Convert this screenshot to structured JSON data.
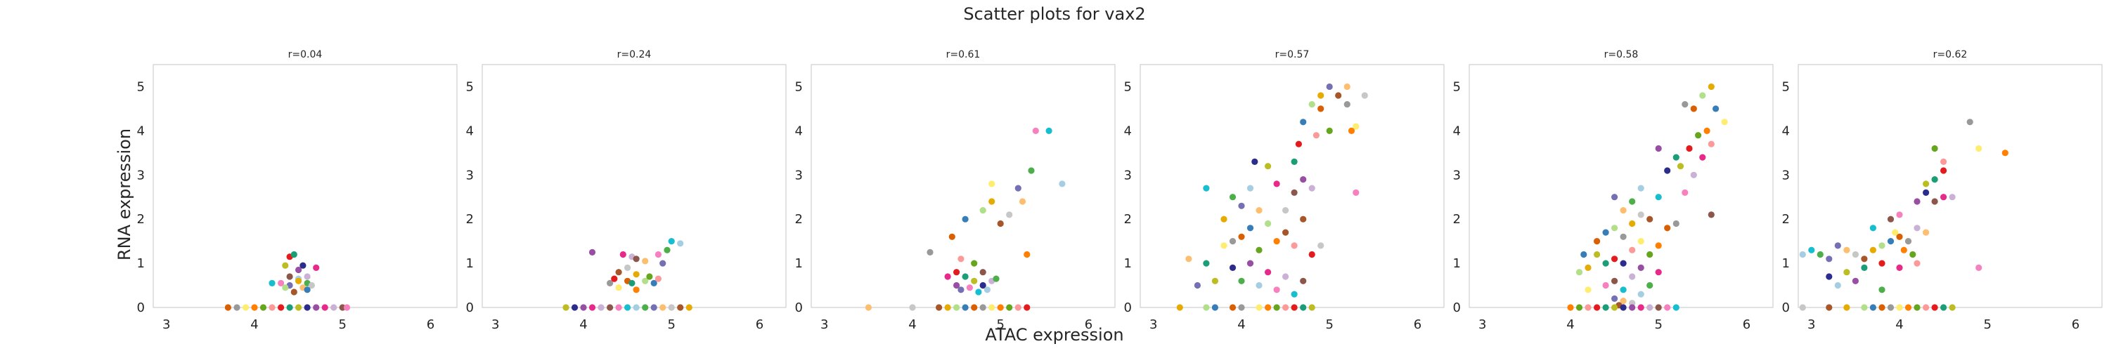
{
  "figure": {
    "title": "Scatter plots for vax2",
    "xlabel": "ATAC expression",
    "ylabel": "RNA expression"
  },
  "colors": [
    "#e41a1c",
    "#377eb8",
    "#4daf4a",
    "#984ea3",
    "#ff7f00",
    "#a65628",
    "#f781bf",
    "#1b9e77",
    "#d95f02",
    "#7570b3",
    "#e7298a",
    "#66a61e",
    "#e6ab02",
    "#17becf",
    "#bcbd22",
    "#999999",
    "#fdbf6f",
    "#cab2d6",
    "#fb9a99",
    "#b2df8a",
    "#a6cee3",
    "#2c2c8c",
    "#ffed6f",
    "#c7c7c7",
    "#8c564b"
  ],
  "chart_data": [
    {
      "type": "scatter",
      "title": "r=0.04",
      "xlim": [
        2.85,
        6.3
      ],
      "ylim": [
        0,
        5.5
      ],
      "xticks": [
        3,
        4,
        5,
        6
      ],
      "yticks": [
        0,
        1,
        2,
        3,
        4,
        5
      ],
      "grid": false,
      "points": [
        [
          4.4,
          1.15
        ],
        [
          4.45,
          1.2
        ],
        [
          4.35,
          0.95
        ],
        [
          4.55,
          0.95
        ],
        [
          4.5,
          0.85
        ],
        [
          4.7,
          0.9
        ],
        [
          4.6,
          0.7
        ],
        [
          4.4,
          0.7
        ],
        [
          4.3,
          0.55
        ],
        [
          4.2,
          0.55
        ],
        [
          4.5,
          0.65
        ],
        [
          4.6,
          0.55
        ],
        [
          4.4,
          0.5
        ],
        [
          4.55,
          0.45
        ],
        [
          4.65,
          0.5
        ],
        [
          4.45,
          0.35
        ],
        [
          4.5,
          0.6
        ],
        [
          4.35,
          0.45
        ],
        [
          4.6,
          0.4
        ],
        [
          3.7,
          0
        ],
        [
          3.8,
          0
        ],
        [
          3.9,
          0
        ],
        [
          4.0,
          0
        ],
        [
          4.1,
          0
        ],
        [
          4.2,
          0
        ],
        [
          4.3,
          0
        ],
        [
          4.4,
          0
        ],
        [
          4.5,
          0
        ],
        [
          4.6,
          0
        ],
        [
          4.7,
          0
        ],
        [
          4.8,
          0
        ],
        [
          4.9,
          0
        ],
        [
          5.0,
          0
        ],
        [
          5.05,
          0
        ]
      ]
    },
    {
      "type": "scatter",
      "title": "r=0.24",
      "xlim": [
        2.85,
        6.3
      ],
      "ylim": [
        0,
        5.5
      ],
      "xticks": [
        3,
        4,
        5,
        6
      ],
      "yticks": [
        0,
        1,
        2,
        3,
        4,
        5
      ],
      "grid": false,
      "points": [
        [
          4.1,
          1.25
        ],
        [
          4.45,
          1.2
        ],
        [
          4.55,
          1.15
        ],
        [
          4.6,
          1.1
        ],
        [
          4.85,
          1.2
        ],
        [
          5.0,
          1.5
        ],
        [
          5.1,
          1.45
        ],
        [
          4.95,
          1.3
        ],
        [
          4.9,
          1.0
        ],
        [
          4.7,
          1.05
        ],
        [
          4.5,
          0.9
        ],
        [
          4.4,
          0.8
        ],
        [
          4.6,
          0.75
        ],
        [
          4.7,
          0.6
        ],
        [
          4.8,
          0.55
        ],
        [
          4.5,
          0.6
        ],
        [
          4.3,
          0.55
        ],
        [
          4.4,
          0.45
        ],
        [
          4.6,
          0.4
        ],
        [
          4.75,
          0.7
        ],
        [
          4.85,
          0.65
        ],
        [
          4.35,
          0.65
        ],
        [
          4.55,
          0.55
        ],
        [
          3.8,
          0
        ],
        [
          3.9,
          0
        ],
        [
          4.0,
          0
        ],
        [
          4.1,
          0
        ],
        [
          4.2,
          0
        ],
        [
          4.3,
          0
        ],
        [
          4.4,
          0
        ],
        [
          4.5,
          0
        ],
        [
          4.6,
          0
        ],
        [
          4.7,
          0
        ],
        [
          4.8,
          0
        ],
        [
          4.9,
          0
        ],
        [
          5.0,
          0
        ],
        [
          5.1,
          0
        ],
        [
          5.2,
          0
        ]
      ]
    },
    {
      "type": "scatter",
      "title": "r=0.61",
      "xlim": [
        2.85,
        6.3
      ],
      "ylim": [
        0,
        5.5
      ],
      "xticks": [
        3,
        4,
        5,
        6
      ],
      "yticks": [
        0,
        1,
        2,
        3,
        4,
        5
      ],
      "grid": false,
      "points": [
        [
          5.4,
          4.0
        ],
        [
          5.55,
          4.0
        ],
        [
          5.7,
          2.8
        ],
        [
          5.35,
          3.1
        ],
        [
          5.2,
          2.7
        ],
        [
          5.25,
          2.4
        ],
        [
          5.1,
          2.1
        ],
        [
          5.0,
          1.9
        ],
        [
          4.9,
          2.4
        ],
        [
          4.8,
          2.2
        ],
        [
          4.6,
          2.0
        ],
        [
          4.45,
          1.6
        ],
        [
          4.2,
          1.25
        ],
        [
          4.9,
          2.8
        ],
        [
          5.3,
          1.2
        ],
        [
          4.7,
          1.0
        ],
        [
          4.55,
          1.1
        ],
        [
          4.5,
          0.8
        ],
        [
          4.6,
          0.7
        ],
        [
          4.7,
          0.6
        ],
        [
          4.8,
          0.5
        ],
        [
          4.5,
          0.5
        ],
        [
          4.4,
          0.7
        ],
        [
          4.9,
          0.6
        ],
        [
          4.8,
          0.8
        ],
        [
          4.65,
          0.45
        ],
        [
          4.75,
          0.35
        ],
        [
          4.85,
          0.4
        ],
        [
          4.95,
          0.65
        ],
        [
          4.55,
          0.4
        ],
        [
          3.5,
          0
        ],
        [
          4.0,
          0
        ],
        [
          4.3,
          0
        ],
        [
          4.4,
          0
        ],
        [
          4.5,
          0
        ],
        [
          4.6,
          0
        ],
        [
          4.7,
          0
        ],
        [
          4.8,
          0
        ],
        [
          4.9,
          0
        ],
        [
          5.0,
          0
        ],
        [
          5.1,
          0
        ],
        [
          5.2,
          0
        ],
        [
          5.3,
          0
        ]
      ]
    },
    {
      "type": "scatter",
      "title": "r=0.57",
      "xlim": [
        2.85,
        6.3
      ],
      "ylim": [
        0,
        5.5
      ],
      "xticks": [
        3,
        4,
        5,
        6
      ],
      "yticks": [
        0,
        1,
        2,
        3,
        4,
        5
      ],
      "grid": false,
      "points": [
        [
          5.0,
          5.0
        ],
        [
          5.2,
          5.0
        ],
        [
          5.4,
          4.8
        ],
        [
          5.1,
          4.8
        ],
        [
          4.9,
          4.8
        ],
        [
          4.8,
          4.6
        ],
        [
          4.7,
          4.2
        ],
        [
          4.9,
          4.5
        ],
        [
          5.2,
          4.6
        ],
        [
          5.3,
          4.1
        ],
        [
          5.25,
          4.0
        ],
        [
          5.0,
          4.0
        ],
        [
          4.85,
          3.9
        ],
        [
          4.65,
          3.7
        ],
        [
          4.6,
          3.3
        ],
        [
          4.3,
          3.2
        ],
        [
          4.15,
          3.3
        ],
        [
          4.7,
          2.9
        ],
        [
          4.4,
          2.8
        ],
        [
          4.8,
          2.7
        ],
        [
          4.6,
          2.6
        ],
        [
          5.3,
          2.6
        ],
        [
          3.6,
          2.7
        ],
        [
          4.1,
          2.7
        ],
        [
          3.9,
          2.5
        ],
        [
          4.0,
          2.3
        ],
        [
          4.2,
          2.2
        ],
        [
          4.5,
          2.2
        ],
        [
          4.7,
          2.0
        ],
        [
          3.8,
          2.0
        ],
        [
          4.3,
          1.9
        ],
        [
          4.1,
          1.8
        ],
        [
          4.0,
          1.6
        ],
        [
          3.9,
          1.5
        ],
        [
          3.8,
          1.4
        ],
        [
          4.4,
          1.5
        ],
        [
          4.2,
          1.3
        ],
        [
          4.6,
          1.4
        ],
        [
          4.8,
          1.2
        ],
        [
          3.6,
          1.0
        ],
        [
          3.7,
          0.6
        ],
        [
          3.9,
          0.9
        ],
        [
          4.1,
          1.0
        ],
        [
          4.3,
          0.8
        ],
        [
          4.5,
          0.7
        ],
        [
          4.7,
          0.6
        ],
        [
          4.4,
          0.4
        ],
        [
          4.6,
          0.3
        ],
        [
          4.2,
          0.5
        ],
        [
          4.0,
          0.6
        ],
        [
          3.5,
          0.5
        ],
        [
          3.4,
          1.1
        ],
        [
          4.9,
          1.4
        ],
        [
          4.5,
          1.7
        ],
        [
          3.3,
          0
        ],
        [
          3.6,
          0
        ],
        [
          3.7,
          0
        ],
        [
          3.9,
          0
        ],
        [
          4.0,
          0
        ],
        [
          4.2,
          0
        ],
        [
          4.3,
          0
        ],
        [
          4.4,
          0
        ],
        [
          4.5,
          0
        ],
        [
          4.6,
          0
        ],
        [
          4.7,
          0
        ],
        [
          4.8,
          0
        ]
      ]
    },
    {
      "type": "scatter",
      "title": "r=0.58",
      "xlim": [
        2.85,
        6.3
      ],
      "ylim": [
        0,
        5.5
      ],
      "xticks": [
        3,
        4,
        5,
        6
      ],
      "yticks": [
        0,
        1,
        2,
        3,
        4,
        5
      ],
      "grid": false,
      "points": [
        [
          5.6,
          5.0
        ],
        [
          5.5,
          4.8
        ],
        [
          5.65,
          4.5
        ],
        [
          5.4,
          4.5
        ],
        [
          5.3,
          4.6
        ],
        [
          5.75,
          4.2
        ],
        [
          5.55,
          4.0
        ],
        [
          5.45,
          3.9
        ],
        [
          5.6,
          3.7
        ],
        [
          5.35,
          3.6
        ],
        [
          5.2,
          3.4
        ],
        [
          5.25,
          3.2
        ],
        [
          5.1,
          3.1
        ],
        [
          5.0,
          3.6
        ],
        [
          5.5,
          3.4
        ],
        [
          5.4,
          3.0
        ],
        [
          5.6,
          2.1
        ],
        [
          5.3,
          2.6
        ],
        [
          5.0,
          2.5
        ],
        [
          4.8,
          2.7
        ],
        [
          4.7,
          2.4
        ],
        [
          4.5,
          2.5
        ],
        [
          4.6,
          2.2
        ],
        [
          4.8,
          2.1
        ],
        [
          4.9,
          2.0
        ],
        [
          4.7,
          1.9
        ],
        [
          4.5,
          1.8
        ],
        [
          4.4,
          1.7
        ],
        [
          4.3,
          1.5
        ],
        [
          4.6,
          1.6
        ],
        [
          4.8,
          1.5
        ],
        [
          5.0,
          1.4
        ],
        [
          4.9,
          1.2
        ],
        [
          4.7,
          1.3
        ],
        [
          4.5,
          1.1
        ],
        [
          4.4,
          1.0
        ],
        [
          4.3,
          1.2
        ],
        [
          4.6,
          1.0
        ],
        [
          4.8,
          0.9
        ],
        [
          5.0,
          0.8
        ],
        [
          4.7,
          0.7
        ],
        [
          4.5,
          0.6
        ],
        [
          4.4,
          0.5
        ],
        [
          4.6,
          0.4
        ],
        [
          4.8,
          0.3
        ],
        [
          4.9,
          0.5
        ],
        [
          4.5,
          0.2
        ],
        [
          4.6,
          0.15
        ],
        [
          4.7,
          0.1
        ],
        [
          4.55,
          0.05
        ],
        [
          4.2,
          0.9
        ],
        [
          4.1,
          0.8
        ],
        [
          4.15,
          1.2
        ],
        [
          5.1,
          1.8
        ],
        [
          5.2,
          1.9
        ],
        [
          4.2,
          0.4
        ],
        [
          4.0,
          0
        ],
        [
          4.1,
          0
        ],
        [
          4.2,
          0
        ],
        [
          4.3,
          0
        ],
        [
          4.4,
          0
        ],
        [
          4.5,
          0
        ],
        [
          4.6,
          0
        ],
        [
          4.7,
          0
        ],
        [
          4.8,
          0
        ],
        [
          4.9,
          0
        ],
        [
          5.0,
          0
        ],
        [
          5.1,
          0
        ],
        [
          5.2,
          0
        ]
      ]
    },
    {
      "type": "scatter",
      "title": "r=0.62",
      "xlim": [
        2.85,
        6.3
      ],
      "ylim": [
        0,
        5.5
      ],
      "xticks": [
        3,
        4,
        5,
        6
      ],
      "yticks": [
        0,
        1,
        2,
        3,
        4,
        5
      ],
      "grid": false,
      "points": [
        [
          4.8,
          4.2
        ],
        [
          4.9,
          3.6
        ],
        [
          5.2,
          3.5
        ],
        [
          4.4,
          3.6
        ],
        [
          4.5,
          3.3
        ],
        [
          4.5,
          3.1
        ],
        [
          4.4,
          2.9
        ],
        [
          4.3,
          2.8
        ],
        [
          4.3,
          2.6
        ],
        [
          4.2,
          2.4
        ],
        [
          4.5,
          2.5
        ],
        [
          4.6,
          2.5
        ],
        [
          4.4,
          2.4
        ],
        [
          4.9,
          0.9
        ],
        [
          3.0,
          1.3
        ],
        [
          2.9,
          1.2
        ],
        [
          3.1,
          1.2
        ],
        [
          3.3,
          1.4
        ],
        [
          3.4,
          1.3
        ],
        [
          3.5,
          1.2
        ],
        [
          3.6,
          1.1
        ],
        [
          3.7,
          1.3
        ],
        [
          3.8,
          1.4
        ],
        [
          3.9,
          1.5
        ],
        [
          4.0,
          1.6
        ],
        [
          4.1,
          1.5
        ],
        [
          3.95,
          1.7
        ],
        [
          4.05,
          1.3
        ],
        [
          4.15,
          1.2
        ],
        [
          4.2,
          1.0
        ],
        [
          3.8,
          1.0
        ],
        [
          3.6,
          0.9
        ],
        [
          3.4,
          0.8
        ],
        [
          3.2,
          0.7
        ],
        [
          3.5,
          0.6
        ],
        [
          4.0,
          0.9
        ],
        [
          4.2,
          1.8
        ],
        [
          3.9,
          2.0
        ],
        [
          4.0,
          2.1
        ],
        [
          3.7,
          1.8
        ],
        [
          3.3,
          0.5
        ],
        [
          3.8,
          0.4
        ],
        [
          3.2,
          1.1
        ],
        [
          4.3,
          1.7
        ],
        [
          2.9,
          0
        ],
        [
          3.2,
          0
        ],
        [
          3.4,
          0
        ],
        [
          3.6,
          0
        ],
        [
          3.7,
          0
        ],
        [
          3.8,
          0
        ],
        [
          3.9,
          0
        ],
        [
          4.0,
          0
        ],
        [
          4.1,
          0
        ],
        [
          4.2,
          0
        ],
        [
          4.3,
          0
        ],
        [
          4.4,
          0
        ],
        [
          4.5,
          0
        ],
        [
          4.6,
          0
        ]
      ]
    }
  ]
}
